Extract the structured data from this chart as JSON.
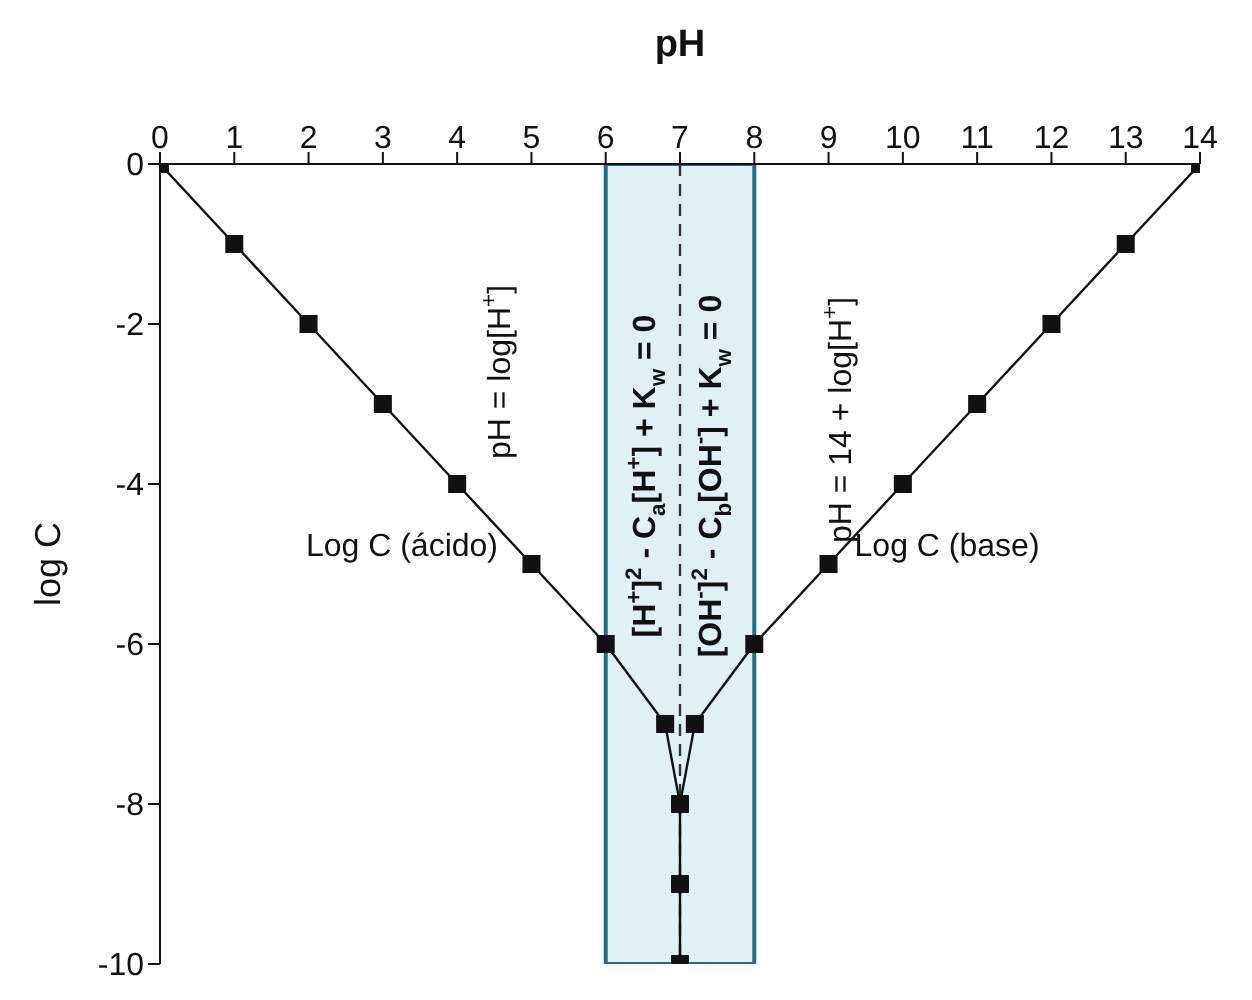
{
  "chart_data": {
    "type": "line",
    "xlabel": "pH",
    "ylabel": "log C",
    "series": [
      {
        "name": "Log C (ácido)",
        "color": "#111111",
        "x": [
          0,
          1,
          2,
          3,
          4,
          5,
          6,
          6.8,
          7
        ],
        "values": [
          0,
          -1,
          -2,
          -3,
          -4,
          -5,
          -6,
          -7,
          -8
        ]
      },
      {
        "name": "Log C (base)",
        "color": "#111111",
        "x": [
          14,
          13,
          12,
          11,
          10,
          9,
          8,
          7.2,
          7
        ],
        "values": [
          0,
          -1,
          -2,
          -3,
          -4,
          -5,
          -6,
          -7,
          -8
        ]
      },
      {
        "color": "#111111",
        "x": [
          7,
          7,
          7
        ],
        "values": [
          -8,
          -9,
          -10
        ]
      }
    ],
    "xlim": [
      0,
      14
    ],
    "xticks": [
      0,
      1,
      2,
      3,
      4,
      5,
      6,
      7,
      8,
      9,
      10,
      11,
      12,
      13,
      14
    ],
    "ylim": [
      -10,
      0
    ],
    "yticks": [
      0,
      -2,
      -4,
      -6,
      -8,
      -10
    ],
    "bands": [
      {
        "axis": "x",
        "from": 6,
        "to": 8,
        "color": "#dff1f5"
      }
    ],
    "ref_lines": [
      {
        "axis": "x",
        "value": 7,
        "line_style": "dashed",
        "color": "#333333"
      }
    ],
    "annotations": [
      "pH = log[H$^{+}$]",
      "pH = 14 + log[H$^{+}$]",
      "[H$^{+}$]$^{2}$ - C$_{a}$[H$^{+}$] + K$_{w}$ = 0",
      "[OH$^{-}$]$^{2}$ - C$_{b}$[OH$^{-}$] + K$_{w}$ = 0"
    ],
    "marker": "square",
    "line_style": "solid",
    "grid": false
  }
}
